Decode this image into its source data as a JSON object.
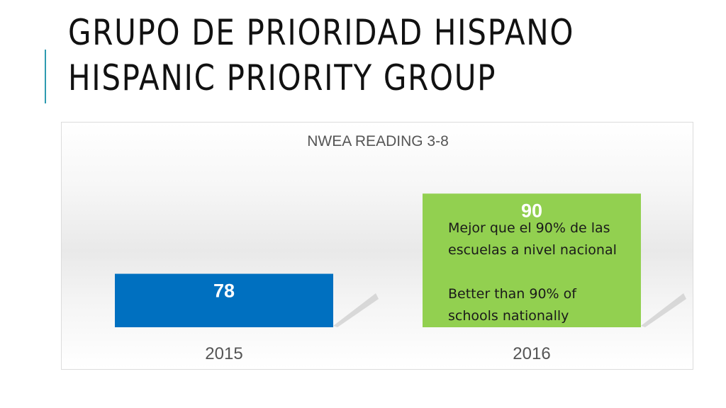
{
  "slide": {
    "title_line_1": "GRUPO DE PRIORIDAD HISPANO",
    "title_line_2": "HISPANIC PRIORITY GROUP",
    "accent_color": "#2e9bb0"
  },
  "chart_data": {
    "type": "bar",
    "title": "NWEA READING 3-8",
    "categories": [
      "2015",
      "2016"
    ],
    "values": [
      78,
      90
    ],
    "data_labels": [
      "78",
      "90"
    ],
    "bar_colors": [
      "#0070c0",
      "#92d050"
    ],
    "ylim": [
      70,
      93
    ],
    "grid": false,
    "legend": "none",
    "xlabel": "",
    "ylabel": ""
  },
  "annotation": {
    "line_1": "Mejor que el 90% de las",
    "line_2": "escuelas a nivel nacional",
    "line_3": "Better than 90% of",
    "line_4": "schools nationally"
  }
}
